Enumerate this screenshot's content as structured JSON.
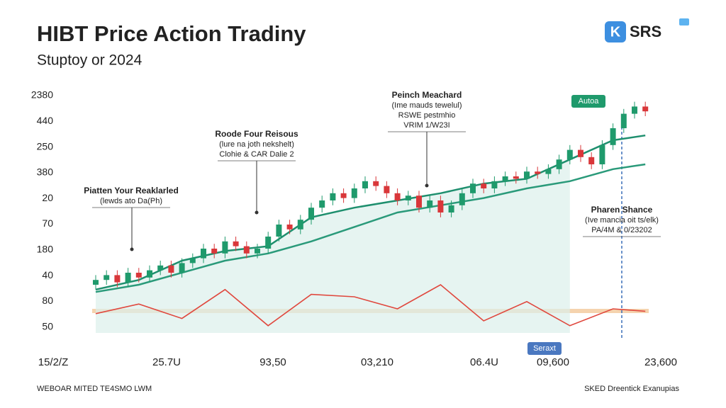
{
  "header": {
    "title": "HIBT Price Action Tradiny",
    "subtitle": "Stuptoy or 2024",
    "logo_icon": "K",
    "logo": "SRS"
  },
  "chart_data": {
    "type": "candlestick",
    "y_labels": [
      "2380",
      "440",
      "250",
      "380",
      "20",
      "70",
      "180",
      "40",
      "80",
      "50"
    ],
    "x_labels": [
      "15/2/Z",
      "25.7U",
      "93,50",
      "03,210",
      "06.4U",
      "09,600",
      "23,600"
    ],
    "ylim": [
      0,
      100
    ],
    "up_color": "#1f9a6c",
    "down_color": "#d9373a",
    "open": [
      20,
      22,
      24,
      21,
      25,
      23,
      26,
      28,
      25,
      29,
      31,
      35,
      33,
      38,
      36,
      33,
      35,
      40,
      45,
      43,
      47,
      52,
      55,
      58,
      56,
      60,
      63,
      61,
      58,
      55,
      57,
      52,
      55,
      50,
      53,
      58,
      62,
      60,
      63,
      65,
      64,
      67,
      66,
      68,
      72,
      76,
      73,
      70,
      78,
      85,
      91,
      94
    ],
    "high": [
      24,
      26,
      26,
      27,
      27,
      28,
      30,
      30,
      31,
      33,
      37,
      37,
      40,
      40,
      38,
      37,
      42,
      47,
      47,
      49,
      54,
      57,
      60,
      60,
      62,
      65,
      65,
      63,
      60,
      59,
      59,
      57,
      57,
      55,
      60,
      64,
      64,
      65,
      67,
      67,
      69,
      69,
      70,
      74,
      78,
      78,
      75,
      80,
      87,
      93,
      96,
      96
    ],
    "low": [
      18,
      20,
      19,
      19,
      21,
      21,
      24,
      23,
      23,
      27,
      29,
      31,
      31,
      34,
      31,
      31,
      33,
      38,
      41,
      41,
      45,
      50,
      53,
      54,
      54,
      58,
      59,
      56,
      53,
      53,
      50,
      50,
      48,
      48,
      51,
      56,
      58,
      58,
      61,
      62,
      62,
      64,
      64,
      66,
      70,
      71,
      68,
      68,
      76,
      83,
      89,
      90
    ],
    "close": [
      22,
      24,
      21,
      25,
      23,
      26,
      28,
      25,
      29,
      31,
      35,
      33,
      38,
      36,
      33,
      35,
      40,
      45,
      43,
      47,
      52,
      55,
      58,
      56,
      60,
      63,
      61,
      58,
      55,
      57,
      52,
      55,
      50,
      53,
      58,
      62,
      60,
      63,
      65,
      64,
      67,
      66,
      68,
      72,
      76,
      73,
      70,
      78,
      85,
      91,
      94,
      92
    ],
    "line_x": [
      0,
      4,
      8,
      12,
      16,
      20,
      24,
      28,
      32,
      36,
      40,
      44,
      48,
      51
    ],
    "lines": [
      {
        "color": "#1e8f6e",
        "values": [
          18,
          22,
          30,
          34,
          36,
          48,
          52,
          55,
          58,
          62,
          64,
          72,
          80,
          82
        ]
      },
      {
        "color": "#2a9a7a",
        "values": [
          17,
          20,
          25,
          30,
          33,
          38,
          44,
          50,
          53,
          56,
          60,
          63,
          68,
          70
        ]
      },
      {
        "color": "#e0483e",
        "values": [
          8,
          12,
          6,
          18,
          3,
          16,
          15,
          10,
          20,
          5,
          13,
          3,
          10,
          9
        ]
      }
    ],
    "annotations": [
      {
        "lines": [
          "Piatten Your Reaklarled",
          "(lewds ato Da(Ph)"
        ]
      },
      {
        "lines": [
          "Roode Four Reisous",
          "(lure na joth nekshelt)",
          "Clohie & CAR Dalie 2"
        ]
      },
      {
        "lines": [
          "Peinch Meachard",
          "(Ime mauds tewelul)",
          "RSWE pestmhio",
          "VRIM 1/W23I"
        ]
      },
      {
        "lines": [
          "Pharen Shance",
          "(Ive mancia oit ts/elk)",
          "PA/4M & 0/23202"
        ]
      }
    ],
    "badges": [
      "Autoa",
      "Seraxt"
    ]
  },
  "footer": {
    "left": "WEBOAR MITED TE4SMO LWM",
    "right": "SKED Dreentick Exanupias"
  }
}
